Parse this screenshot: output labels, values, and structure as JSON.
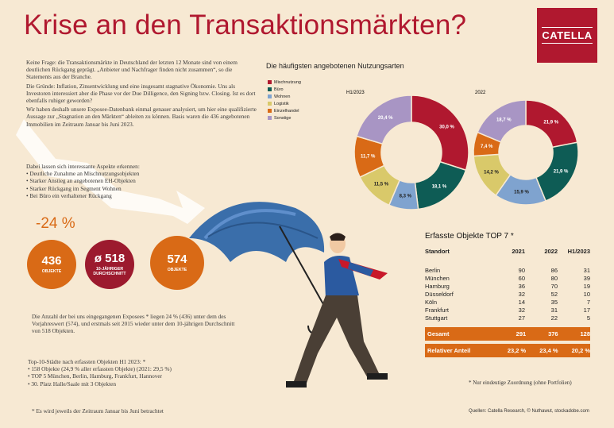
{
  "title": "Krise an den Transaktionsmärkten?",
  "logo": "CATELLA",
  "intro": [
    "Keine Frage: die Transaktionsmärkte in Deutschland der letzten 12 Monate sind von einem deutlichen Rückgang geprägt. „Anbieter und Nachfrager finden nicht zusammen“, so die Statements aus der Branche.",
    "Die Gründe: Inflation, Zinsentwicklung und eine insgesamt stagnative Ökonomie. Uns als Investoren interessiert aber die Phase vor der Due Dilligence, den Signing bzw. Closing. Ist es dort ebenfalls ruhiger geworden?",
    "Wir haben deshalb unsere Exposee-Datenbank einmal genauer analysiert, um hier eine qualifizierte Aussage zur „Stagnation an den Märkten“ ableiten zu können. Basis waren die 436 angebotenen Immobilien im Zeitraum Januar bis Juni 2023."
  ],
  "aspects_title": "Dabei lassen sich interessante Aspekte erkennen:",
  "aspects": [
    "Deutliche Zunahme an Mischnutzungsobjekten",
    "Starker Anstieg an angebotenen EH-Objekten",
    "Starker Rückgang im Segment Wohnen",
    "Bei Büro ein verhaltener Rückgang"
  ],
  "change_pct": "-24 %",
  "circles": [
    {
      "value": "436",
      "label": "OBJEKTE",
      "color": "#d96a16"
    },
    {
      "value": "ø 518",
      "label": "10-JÄHRIGER DURCHSCHNITT",
      "color": "#9c1a2e"
    },
    {
      "value": "574",
      "label": "OBJEKTE",
      "color": "#d96a16"
    }
  ],
  "expose_text": "Die Anzahl der bei uns eingegangenen Exposees * liegen 24 % (436) unter dem des Vorjahreswert (574), und erstmals seit 2015 wieder unter dem 10-jährigen Durchschnitt von 518 Objekten.",
  "top10_title": "Top-10-Städte nach erfassten Objekten H1 2023: *",
  "top10": [
    "158 Objekte (24,9 % aller erfassten Objekte) (2021: 29,5 %)",
    "TOP 5 München, Berlin, Hamburg, Frankfurt, Hannover",
    "30. Platz Halle/Saale mit 3 Objekten"
  ],
  "footnote": "* Es wird jeweils der Zeitraum Januar bis Juni betrachtet",
  "pie_title": "Die häufigsten angebotenen Nutzungsarten",
  "legend": [
    {
      "label": "Mischnutzung",
      "color": "#b0182f"
    },
    {
      "label": "Büro",
      "color": "#0e5c55"
    },
    {
      "label": "Wohnen",
      "color": "#7fa3cf"
    },
    {
      "label": "Logistik",
      "color": "#d9c96a"
    },
    {
      "label": "Einzelhandel",
      "color": "#d96a16"
    },
    {
      "label": "Sonstige",
      "color": "#a895c4"
    }
  ],
  "chart_data": [
    {
      "type": "pie",
      "title": "H1/2023",
      "categories": [
        "Mischnutzung",
        "Büro",
        "Wohnen",
        "Logistik",
        "Einzelhandel",
        "Sonstige"
      ],
      "values": [
        30.0,
        18.1,
        8.3,
        11.5,
        11.7,
        20.4
      ],
      "labels": [
        "30,0 %",
        "18,1 %",
        "8,3 %",
        "11,5 %",
        "11,7 %",
        "20,4 %"
      ]
    },
    {
      "type": "pie",
      "title": "2022",
      "categories": [
        "Mischnutzung",
        "Büro",
        "Wohnen",
        "Logistik",
        "Einzelhandel",
        "Sonstige"
      ],
      "values": [
        21.9,
        21.9,
        15.9,
        14.2,
        7.4,
        18.7
      ],
      "labels": [
        "21,9 %",
        "21,9 %",
        "15,9 %",
        "14,2 %",
        "7,4 %",
        "18,7 %"
      ]
    },
    {
      "type": "table",
      "title": "Erfasste Objekte TOP 7 *",
      "columns": [
        "Standort",
        "2021",
        "2022",
        "H1/2023"
      ],
      "rows": [
        [
          "Berlin",
          "90",
          "86",
          "31"
        ],
        [
          "München",
          "60",
          "80",
          "39"
        ],
        [
          "Hamburg",
          "36",
          "70",
          "19"
        ],
        [
          "Düsseldorf",
          "32",
          "52",
          "10"
        ],
        [
          "Köln",
          "14",
          "35",
          "7"
        ],
        [
          "Frankfurt",
          "32",
          "31",
          "17"
        ],
        [
          "Stuttgart",
          "27",
          "22",
          "5"
        ]
      ],
      "totals": [
        [
          "Gesamt",
          "291",
          "376",
          "128"
        ],
        [
          "Relativer Anteil",
          "23,2 %",
          "23,4 %",
          "20,2 %"
        ]
      ]
    }
  ],
  "table_note": "* Nur eindeutige Zuordnung (ohne Portfolien)",
  "sources": "Quellen: Catella Research, © Nuthawut, stockadobe.com"
}
